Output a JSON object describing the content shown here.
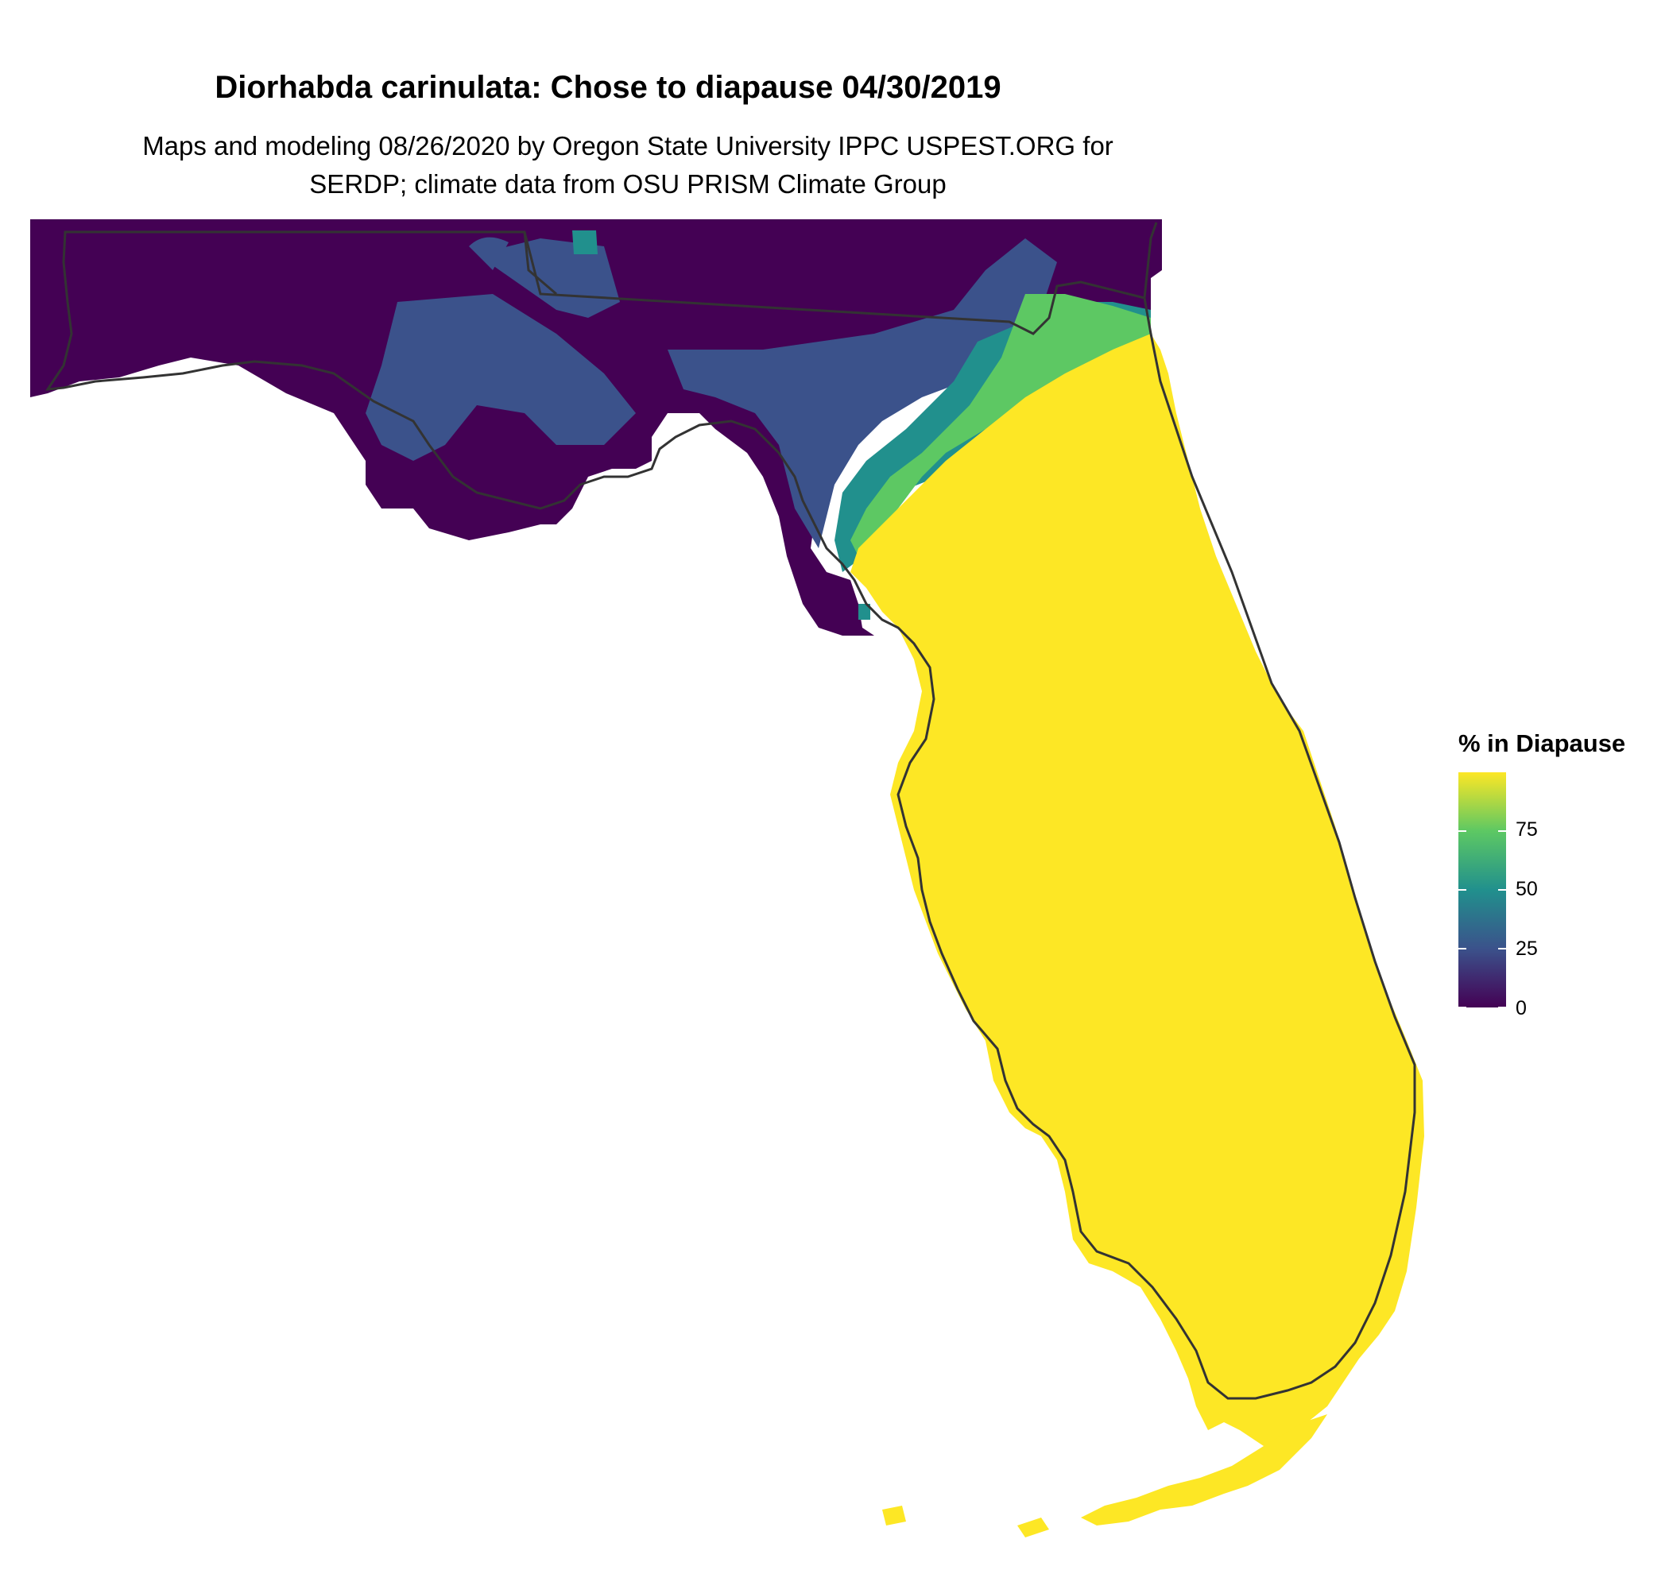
{
  "title": "Diorhabda carinulata: Chose to diapause 04/30/2019",
  "subtitle": [
    "Maps and modeling 08/26/2020 by Oregon State University IPPC USPEST.ORG for",
    "SERDP; climate data from OSU PRISM Climate Group"
  ],
  "legend": {
    "title": "% in Diapause",
    "ticks": [
      "0",
      "25",
      "50",
      "75"
    ],
    "scale": "viridis",
    "colors": [
      "#440154",
      "#3b528b",
      "#21908d",
      "#5dc863",
      "#fde725"
    ],
    "range": [
      0,
      100
    ]
  },
  "map": {
    "region": "Florida",
    "panhandle_fill": "#440154",
    "peninsula_fill": "#fde725",
    "outline_color": "#333333"
  }
}
